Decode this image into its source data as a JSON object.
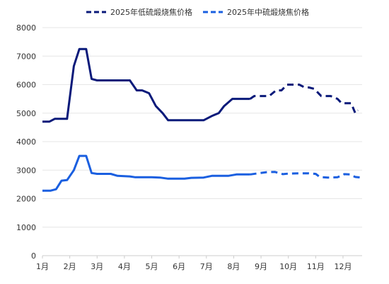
{
  "chart_data": {
    "type": "line",
    "xlim": [
      1,
      12.7
    ],
    "ylim": [
      0,
      8000
    ],
    "yticks": [
      0,
      1000,
      2000,
      3000,
      4000,
      5000,
      6000,
      7000,
      8000
    ],
    "xticks": [
      {
        "v": 1,
        "label": "1月"
      },
      {
        "v": 2,
        "label": "2月"
      },
      {
        "v": 3,
        "label": "3月"
      },
      {
        "v": 4,
        "label": "4月"
      },
      {
        "v": 5,
        "label": "5月"
      },
      {
        "v": 6,
        "label": "6月"
      },
      {
        "v": 7,
        "label": "7月"
      },
      {
        "v": 8,
        "label": "8月"
      },
      {
        "v": 9,
        "label": "9月"
      },
      {
        "v": 10,
        "label": "10月"
      },
      {
        "v": 11,
        "label": "11月"
      },
      {
        "v": 12,
        "label": "12月"
      }
    ],
    "grid": true,
    "legend_position": "top",
    "series": [
      {
        "name": "2025年低硫煅烧焦价格",
        "color": "#0a1a7a",
        "actual": [
          [
            1.0,
            4700
          ],
          [
            1.25,
            4700
          ],
          [
            1.45,
            4800
          ],
          [
            1.9,
            4800
          ],
          [
            2.15,
            6650
          ],
          [
            2.35,
            7250
          ],
          [
            2.6,
            7250
          ],
          [
            2.8,
            6200
          ],
          [
            3.0,
            6150
          ],
          [
            4.2,
            6150
          ],
          [
            4.45,
            5800
          ],
          [
            4.65,
            5800
          ],
          [
            4.9,
            5700
          ],
          [
            5.15,
            5250
          ],
          [
            5.4,
            5000
          ],
          [
            5.6,
            4750
          ],
          [
            6.4,
            4750
          ],
          [
            6.6,
            4750
          ],
          [
            6.9,
            4750
          ],
          [
            7.2,
            4900
          ],
          [
            7.45,
            5000
          ],
          [
            7.65,
            5250
          ],
          [
            7.95,
            5500
          ],
          [
            8.3,
            5500
          ],
          [
            8.6,
            5500
          ]
        ],
        "forecast": [
          [
            8.6,
            5500
          ],
          [
            8.75,
            5600
          ],
          [
            9.3,
            5600
          ],
          [
            9.55,
            5800
          ],
          [
            9.75,
            5800
          ],
          [
            9.95,
            6000
          ],
          [
            10.4,
            6000
          ],
          [
            10.6,
            5900
          ],
          [
            10.75,
            5900
          ],
          [
            10.95,
            5850
          ],
          [
            11.2,
            5600
          ],
          [
            11.55,
            5600
          ],
          [
            11.8,
            5500
          ],
          [
            11.95,
            5350
          ],
          [
            12.3,
            5350
          ],
          [
            12.45,
            5000
          ],
          [
            12.55,
            5100
          ]
        ]
      },
      {
        "name": "2025年中硫煅烧焦价格",
        "color": "#1a5fe0",
        "actual": [
          [
            1.0,
            2280
          ],
          [
            1.3,
            2280
          ],
          [
            1.5,
            2330
          ],
          [
            1.7,
            2630
          ],
          [
            1.9,
            2650
          ],
          [
            2.15,
            3000
          ],
          [
            2.35,
            3500
          ],
          [
            2.6,
            3500
          ],
          [
            2.8,
            2900
          ],
          [
            3.0,
            2870
          ],
          [
            3.5,
            2870
          ],
          [
            3.75,
            2800
          ],
          [
            4.2,
            2780
          ],
          [
            4.4,
            2750
          ],
          [
            5.0,
            2750
          ],
          [
            5.3,
            2740
          ],
          [
            5.6,
            2700
          ],
          [
            6.2,
            2700
          ],
          [
            6.45,
            2730
          ],
          [
            6.9,
            2740
          ],
          [
            7.2,
            2800
          ],
          [
            7.8,
            2800
          ],
          [
            8.1,
            2850
          ],
          [
            8.6,
            2850
          ]
        ],
        "forecast": [
          [
            8.6,
            2850
          ],
          [
            9.2,
            2930
          ],
          [
            9.5,
            2940
          ],
          [
            9.8,
            2860
          ],
          [
            10.0,
            2880
          ],
          [
            10.4,
            2890
          ],
          [
            10.75,
            2890
          ],
          [
            11.0,
            2870
          ],
          [
            11.15,
            2760
          ],
          [
            11.45,
            2740
          ],
          [
            11.8,
            2750
          ],
          [
            12.05,
            2860
          ],
          [
            12.25,
            2850
          ],
          [
            12.45,
            2760
          ],
          [
            12.65,
            2740
          ]
        ]
      }
    ]
  }
}
